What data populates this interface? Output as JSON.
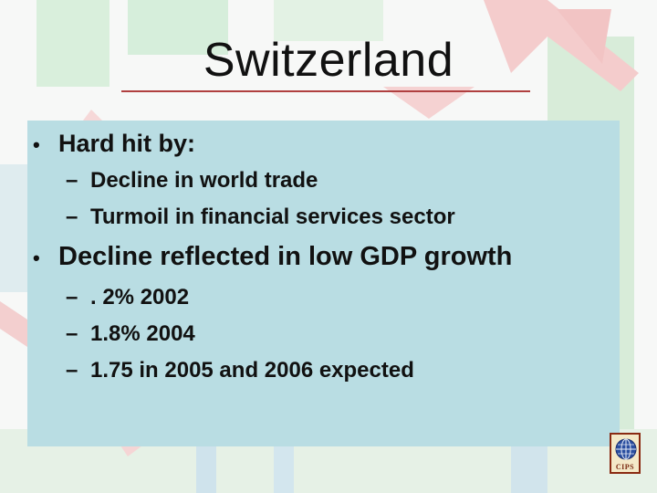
{
  "slide": {
    "title": "Switzerland",
    "bullets": [
      {
        "text": "Hard hit by:",
        "subitems": [
          "Decline in world trade",
          "Turmoil in financial services sector"
        ]
      },
      {
        "text": "Decline reflected in low GDP growth",
        "subitems": [
          ". 2% 2002",
          "1.8% 2004",
          "1.75 in 2005 and 2006 expected"
        ]
      }
    ],
    "bullet_glyph": "•",
    "dash_glyph": "–",
    "logo_text": "CIPS"
  },
  "colors": {
    "panel": "#b9dde3",
    "rule": "#b04040",
    "background_red": "#f2c8c8",
    "background_green": "#d4ecd8",
    "background_blue": "#c8e0ea"
  }
}
